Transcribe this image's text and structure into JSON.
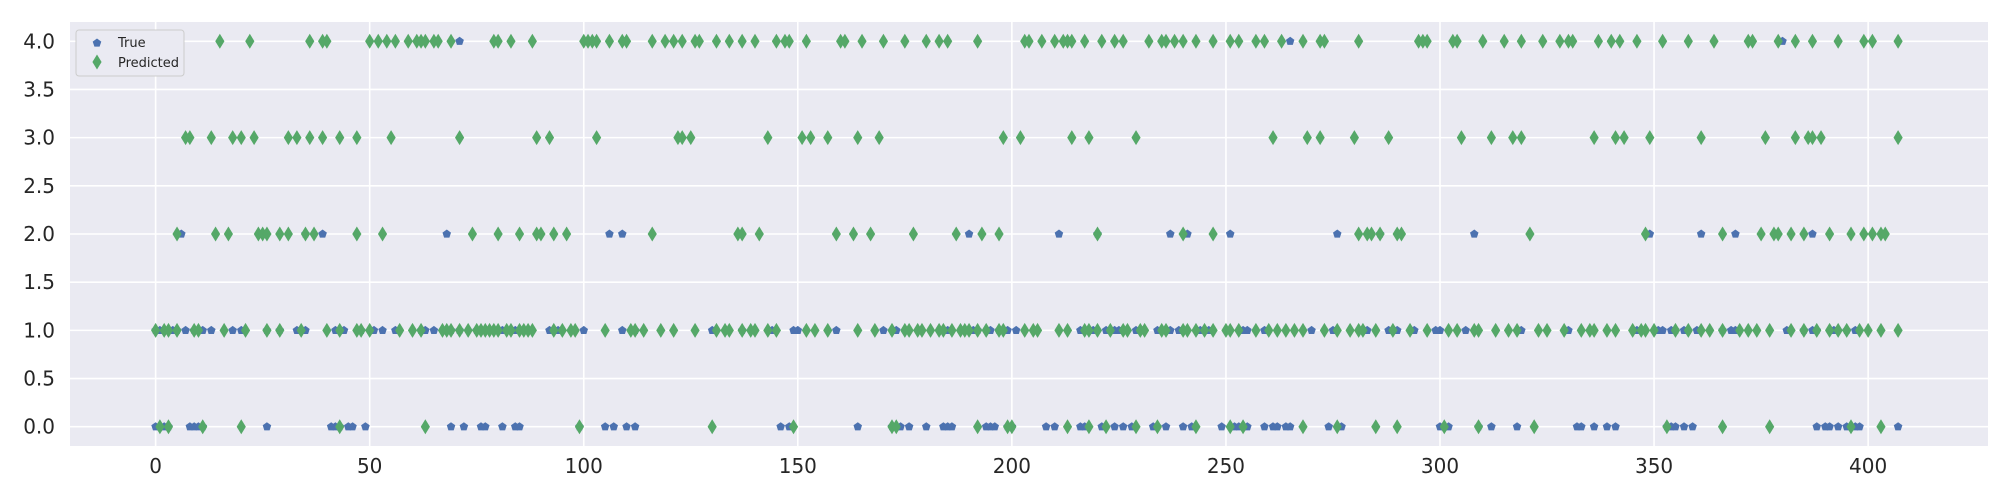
{
  "chart_data": {
    "type": "scatter",
    "title": "",
    "xlabel": "",
    "ylabel": "",
    "xlim": [
      -20,
      428
    ],
    "ylim": [
      -0.2,
      4.2
    ],
    "xticks": [
      0,
      50,
      100,
      150,
      200,
      250,
      300,
      350,
      400
    ],
    "yticks": [
      0.0,
      0.5,
      1.0,
      1.5,
      2.0,
      2.5,
      3.0,
      3.5,
      4.0
    ],
    "xtick_labels": [
      "0",
      "50",
      "100",
      "150",
      "200",
      "250",
      "300",
      "350",
      "400"
    ],
    "ytick_labels": [
      "0.0",
      "0.5",
      "1.0",
      "1.5",
      "2.0",
      "2.5",
      "3.0",
      "3.5",
      "4.0"
    ],
    "grid": true,
    "legend_position": "top-left",
    "series": [
      {
        "name": "True",
        "marker": "pentagon",
        "color": "#4c72b0",
        "points": [
          {
            "level": 0,
            "x": [
              0,
              1,
              2,
              3,
              8,
              9,
              10,
              11,
              26,
              41,
              42,
              43,
              45,
              46,
              49,
              69,
              72,
              76,
              77,
              81,
              84,
              85,
              99,
              105,
              107,
              110,
              112,
              146,
              148,
              164,
              172,
              174,
              176,
              180,
              184,
              185,
              186,
              194,
              195,
              196,
              199,
              200,
              208,
              210,
              216,
              217,
              221,
              224,
              226,
              228,
              233,
              234,
              236,
              240,
              242,
              249,
              252,
              253,
              254,
              255,
              259,
              261,
              262,
              264,
              265,
              274,
              277,
              300,
              301,
              302,
              309,
              312,
              318,
              332,
              333,
              336,
              339,
              341,
              353,
              354,
              355,
              357,
              359,
              388,
              390,
              391,
              393,
              395,
              397,
              398,
              407
            ]
          },
          {
            "level": 1,
            "x": [
              0,
              1,
              2,
              4,
              5,
              7,
              9,
              11,
              13,
              18,
              20,
              26,
              29,
              33,
              35,
              42,
              44,
              48,
              51,
              53,
              56,
              62,
              63,
              65,
              69,
              71,
              75,
              78,
              81,
              84,
              92,
              94,
              100,
              109,
              112,
              130,
              137,
              144,
              149,
              150,
              159,
              170,
              173,
              185,
              190,
              191,
              192,
              195,
              197,
              199,
              201,
              216,
              219,
              222,
              224,
              225,
              229,
              234,
              237,
              239,
              244,
              246,
              254,
              255,
              259,
              270,
              275,
              283,
              288,
              290,
              294,
              299,
              300,
              306,
              319,
              330,
              346,
              351,
              352,
              354,
              355,
              357,
              360,
              366,
              368,
              369,
              381,
              385,
              387,
              388,
              392,
              395,
              397
            ]
          },
          {
            "level": 2,
            "x": [
              6,
              35,
              39,
              68,
              106,
              109,
              190,
              211,
              220,
              237,
              241,
              251,
              276,
              286,
              308,
              349,
              361,
              369,
              387
            ]
          },
          {
            "level": 3,
            "x": []
          },
          {
            "level": 4,
            "x": [
              71,
              265,
              380
            ]
          }
        ]
      },
      {
        "name": "Predicted",
        "marker": "thin_diamond",
        "color": "#55a868",
        "points": [
          {
            "level": 0,
            "x": [
              1,
              3,
              11,
              20,
              43,
              63,
              99,
              130,
              149,
              172,
              173,
              192,
              199,
              200,
              213,
              218,
              222,
              229,
              234,
              243,
              251,
              254,
              268,
              276,
              285,
              290,
              301,
              309,
              322,
              353,
              366,
              377,
              396,
              403
            ]
          },
          {
            "level": 1,
            "x": [
              0,
              2,
              3,
              5,
              9,
              10,
              16,
              21,
              26,
              29,
              34,
              40,
              43,
              47,
              48,
              50,
              57,
              60,
              62,
              67,
              68,
              69,
              71,
              73,
              75,
              76,
              77,
              78,
              79,
              80,
              82,
              83,
              85,
              86,
              87,
              88,
              93,
              95,
              97,
              98,
              105,
              111,
              112,
              114,
              118,
              121,
              126,
              131,
              133,
              134,
              137,
              139,
              140,
              143,
              145,
              152,
              154,
              157,
              164,
              168,
              172,
              175,
              176,
              178,
              179,
              181,
              183,
              184,
              186,
              188,
              189,
              190,
              192,
              194,
              197,
              198,
              203,
              205,
              206,
              211,
              213,
              217,
              218,
              220,
              223,
              226,
              227,
              230,
              231,
              235,
              236,
              240,
              241,
              243,
              245,
              247,
              250,
              251,
              253,
              257,
              260,
              262,
              264,
              266,
              268,
              273,
              276,
              279,
              281,
              282,
              285,
              289,
              293,
              297,
              302,
              304,
              308,
              309,
              313,
              316,
              318,
              323,
              325,
              329,
              333,
              335,
              336,
              339,
              341,
              345,
              347,
              348,
              350,
              355,
              358,
              361,
              363,
              366,
              370,
              372,
              374,
              377,
              382,
              385,
              388,
              391,
              393,
              395,
              398,
              400,
              403,
              407
            ]
          },
          {
            "level": 2,
            "x": [
              5,
              14,
              17,
              24,
              25,
              26,
              29,
              31,
              35,
              37,
              47,
              53,
              74,
              80,
              85,
              89,
              90,
              93,
              96,
              116,
              136,
              137,
              141,
              159,
              163,
              167,
              177,
              187,
              193,
              197,
              220,
              240,
              247,
              281,
              283,
              284,
              286,
              290,
              291,
              321,
              348,
              366,
              375,
              378,
              379,
              382,
              385,
              391,
              396,
              399,
              401,
              403,
              404
            ]
          },
          {
            "level": 3,
            "x": [
              7,
              8,
              13,
              18,
              20,
              23,
              31,
              33,
              36,
              39,
              43,
              47,
              55,
              71,
              89,
              92,
              103,
              122,
              123,
              125,
              143,
              151,
              153,
              157,
              164,
              169,
              198,
              202,
              214,
              218,
              229,
              261,
              269,
              272,
              280,
              288,
              305,
              312,
              317,
              319,
              336,
              341,
              343,
              349,
              361,
              376,
              383,
              386,
              387,
              389,
              407
            ]
          },
          {
            "level": 4,
            "x": [
              15,
              22,
              36,
              39,
              40,
              50,
              52,
              54,
              56,
              59,
              61,
              62,
              63,
              65,
              66,
              69,
              79,
              80,
              83,
              88,
              100,
              101,
              102,
              103,
              106,
              109,
              110,
              116,
              119,
              121,
              123,
              126,
              127,
              131,
              134,
              137,
              140,
              145,
              147,
              148,
              152,
              160,
              161,
              165,
              170,
              175,
              180,
              183,
              185,
              192,
              203,
              204,
              207,
              210,
              212,
              213,
              214,
              217,
              221,
              224,
              226,
              232,
              235,
              236,
              238,
              240,
              243,
              247,
              251,
              253,
              257,
              259,
              263,
              268,
              272,
              273,
              281,
              295,
              296,
              297,
              303,
              304,
              310,
              315,
              319,
              324,
              328,
              330,
              331,
              337,
              340,
              342,
              346,
              352,
              358,
              364,
              372,
              373,
              379,
              383,
              387,
              393,
              399,
              401,
              407
            ]
          }
        ]
      }
    ]
  }
}
